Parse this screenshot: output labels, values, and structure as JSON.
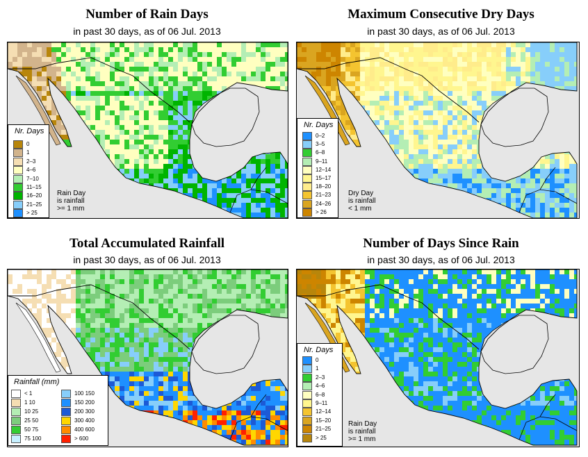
{
  "panels": [
    {
      "title": "Number of Rain Days",
      "subtitle": "in past 30 days, as of  06 Jul. 2013",
      "theme": "raindays",
      "legend": {
        "title": "Nr. Days",
        "items": [
          {
            "label": "0",
            "color": "#b8860b"
          },
          {
            "label": "1",
            "color": "#d2b48c"
          },
          {
            "label": "2–3",
            "color": "#f5deb3"
          },
          {
            "label": "4–6",
            "color": "#ffffc0"
          },
          {
            "label": "7–10",
            "color": "#b4eeb4"
          },
          {
            "label": "11–15",
            "color": "#32cd32"
          },
          {
            "label": "16–20",
            "color": "#00b400"
          },
          {
            "label": "21–25",
            "color": "#87cefa"
          },
          {
            "label": "> 25",
            "color": "#1e90ff"
          }
        ]
      },
      "note": [
        "Rain Day",
        "is rainfall",
        ">= 1 mm"
      ]
    },
    {
      "title": "Maximum Consecutive Dry Days",
      "subtitle": "in past 30 days, as of  06 Jul. 2013",
      "theme": "drydays",
      "legend": {
        "title": "Nr. Days",
        "items": [
          {
            "label": "0–2",
            "color": "#1e90ff"
          },
          {
            "label": "3–5",
            "color": "#87cefa"
          },
          {
            "label": "6–8",
            "color": "#32cd32"
          },
          {
            "label": "9–11",
            "color": "#b4eeb4"
          },
          {
            "label": "12–14",
            "color": "#ffffc0"
          },
          {
            "label": "15–17",
            "color": "#fff68f"
          },
          {
            "label": "18–20",
            "color": "#ffec8b"
          },
          {
            "label": "21–23",
            "color": "#f4c430"
          },
          {
            "label": "24–26",
            "color": "#daa520"
          },
          {
            "label": "> 26",
            "color": "#cd8500"
          }
        ]
      },
      "note": [
        "Dry Day",
        "is rainfall",
        "< 1 mm"
      ]
    },
    {
      "title": "Total Accumulated Rainfall",
      "subtitle": "in past 30 days, as of  06 Jul. 2013",
      "theme": "rainfall",
      "legend": {
        "title": "Rainfall (mm)",
        "items": [
          {
            "label": "< 1",
            "color": "#ffffff"
          },
          {
            "label": "1   10",
            "color": "#f5deb3"
          },
          {
            "label": "10   25",
            "color": "#b4eeb4"
          },
          {
            "label": "25   50",
            "color": "#7ccd7c"
          },
          {
            "label": "50   75",
            "color": "#32cd32"
          },
          {
            "label": "75   100",
            "color": "#c6f0ff"
          },
          {
            "label": "100   150",
            "color": "#87cefa"
          },
          {
            "label": "150   200",
            "color": "#1e90ff"
          },
          {
            "label": "200   300",
            "color": "#1c5ad6"
          },
          {
            "label": "300   400",
            "color": "#ffd700"
          },
          {
            "label": "400   600",
            "color": "#ff8c00"
          },
          {
            "label": "> 600",
            "color": "#ff2000"
          }
        ]
      },
      "note": []
    },
    {
      "title": "Number of Days Since Rain",
      "subtitle": "in past 30 days, as of  06 Jul. 2013",
      "theme": "sincerain",
      "legend": {
        "title": "Nr. Days",
        "items": [
          {
            "label": "0",
            "color": "#1e90ff"
          },
          {
            "label": "1",
            "color": "#87cefa"
          },
          {
            "label": "2–3",
            "color": "#32cd32"
          },
          {
            "label": "4–6",
            "color": "#b4eeb4"
          },
          {
            "label": "6–8",
            "color": "#ffffc0"
          },
          {
            "label": "9–11",
            "color": "#fff68f"
          },
          {
            "label": "12–14",
            "color": "#f4c430"
          },
          {
            "label": "15–20",
            "color": "#daa520"
          },
          {
            "label": "21–25",
            "color": "#cd8500"
          },
          {
            "label": "> 25",
            "color": "#b8860b"
          }
        ]
      },
      "note": [
        "Rain Day",
        "is rainfall",
        ">= 1 mm"
      ]
    }
  ]
}
